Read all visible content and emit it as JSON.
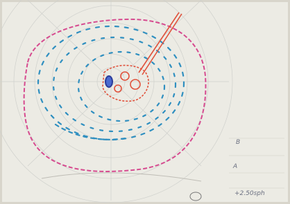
{
  "annotations": {
    "mark_b": "B",
    "mark_a": "A",
    "lens": "+2.50sph"
  }
}
